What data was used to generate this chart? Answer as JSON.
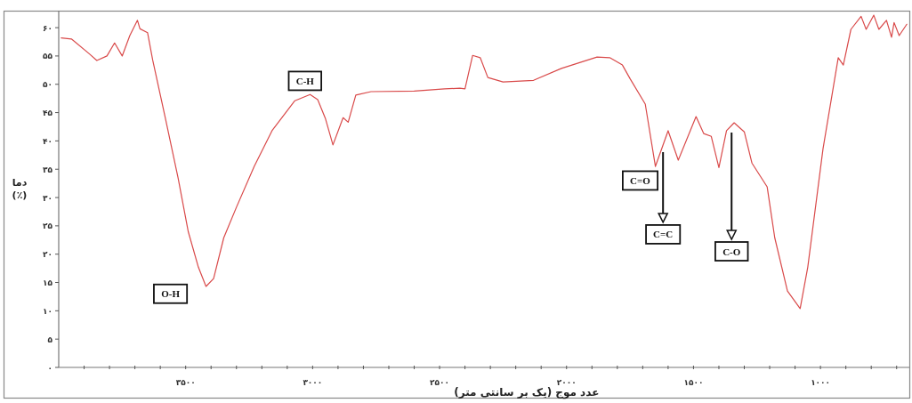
{
  "chart_data": {
    "type": "line",
    "xlabel": "عدد موج (یک بر سانتی متر)",
    "ylabel": "دما\n(٪)",
    "xlim": [
      4000,
      650
    ],
    "ylim": [
      0,
      63
    ],
    "xticks": [
      {
        "value": 3900,
        "label": null
      },
      {
        "value": 3800,
        "label": null
      },
      {
        "value": 3700,
        "label": null
      },
      {
        "value": 3600,
        "label": null
      },
      {
        "value": 3500,
        "label": "۳۵۰۰"
      },
      {
        "value": 3400,
        "label": null
      },
      {
        "value": 3300,
        "label": null
      },
      {
        "value": 3200,
        "label": null
      },
      {
        "value": 3100,
        "label": null
      },
      {
        "value": 3000,
        "label": "۳۰۰۰"
      },
      {
        "value": 2900,
        "label": null
      },
      {
        "value": 2800,
        "label": null
      },
      {
        "value": 2700,
        "label": null
      },
      {
        "value": 2600,
        "label": null
      },
      {
        "value": 2500,
        "label": "۲۵۰۰"
      },
      {
        "value": 2400,
        "label": null
      },
      {
        "value": 2300,
        "label": null
      },
      {
        "value": 2200,
        "label": null
      },
      {
        "value": 2100,
        "label": null
      },
      {
        "value": 2000,
        "label": "۲۰۰۰"
      },
      {
        "value": 1900,
        "label": null
      },
      {
        "value": 1800,
        "label": null
      },
      {
        "value": 1700,
        "label": null
      },
      {
        "value": 1600,
        "label": null
      },
      {
        "value": 1500,
        "label": "۱۵۰۰"
      },
      {
        "value": 1400,
        "label": null
      },
      {
        "value": 1300,
        "label": null
      },
      {
        "value": 1200,
        "label": null
      },
      {
        "value": 1100,
        "label": null
      },
      {
        "value": 1000,
        "label": "۱۰۰۰"
      },
      {
        "value": 900,
        "label": null
      },
      {
        "value": 800,
        "label": null
      },
      {
        "value": 700,
        "label": null
      }
    ],
    "yticks": [
      {
        "value": 0,
        "label": "۰"
      },
      {
        "value": 5,
        "label": "۵"
      },
      {
        "value": 10,
        "label": "۱۰"
      },
      {
        "value": 15,
        "label": "۱۵"
      },
      {
        "value": 20,
        "label": "۲۰"
      },
      {
        "value": 25,
        "label": "۲۵"
      },
      {
        "value": 30,
        "label": "۳۰"
      },
      {
        "value": 35,
        "label": "۳۵"
      },
      {
        "value": 40,
        "label": "۴۰"
      },
      {
        "value": 45,
        "label": "۴۵"
      },
      {
        "value": 50,
        "label": "۵۰"
      },
      {
        "value": 55,
        "label": "۵۵"
      },
      {
        "value": 60,
        "label": "۶۰"
      }
    ],
    "grid": false,
    "line_style": "solid",
    "series": [
      {
        "color": "#d94a4a",
        "x": [
          3990,
          3950,
          3880,
          3850,
          3810,
          3780,
          3750,
          3720,
          3690,
          3680,
          3650,
          3630,
          3580,
          3530,
          3490,
          3450,
          3420,
          3390,
          3350,
          3300,
          3230,
          3160,
          3070,
          3010,
          2980,
          2950,
          2920,
          2880,
          2860,
          2830,
          2770,
          2600,
          2480,
          2420,
          2400,
          2370,
          2340,
          2310,
          2250,
          2130,
          2020,
          1880,
          1830,
          1780,
          1750,
          1690,
          1650,
          1600,
          1560,
          1490,
          1460,
          1430,
          1400,
          1370,
          1340,
          1300,
          1270,
          1210,
          1180,
          1130,
          1080,
          1050,
          990,
          930,
          910,
          880,
          840,
          820,
          790,
          770,
          740,
          720,
          710,
          690,
          660
        ],
        "values": [
          58.2,
          58.0,
          55.4,
          54.2,
          55.0,
          57.3,
          55.0,
          58.6,
          61.3,
          59.8,
          59.1,
          54.3,
          44.0,
          33.5,
          24.0,
          17.7,
          14.3,
          15.7,
          22.9,
          28.3,
          35.5,
          41.8,
          47.1,
          48.2,
          47.3,
          44.0,
          39.3,
          44.1,
          43.3,
          48.1,
          48.7,
          48.8,
          49.2,
          49.3,
          49.2,
          55.1,
          54.7,
          51.2,
          50.4,
          50.7,
          52.8,
          54.8,
          54.7,
          53.4,
          51.0,
          46.5,
          35.5,
          41.8,
          36.6,
          44.3,
          41.3,
          40.8,
          35.3,
          41.8,
          43.2,
          41.6,
          36.1,
          31.9,
          22.9,
          13.5,
          10.4,
          17.7,
          38.6,
          54.7,
          53.4,
          59.7,
          62.0,
          59.7,
          62.2,
          59.7,
          61.3,
          58.3,
          60.9,
          58.6,
          60.6
        ]
      }
    ],
    "annotations": [
      {
        "text": "O-H",
        "x": 3560,
        "y": 13
      },
      {
        "text": "C-H",
        "x": 3030,
        "y": 50.6
      },
      {
        "text": "C=O",
        "x": 1710,
        "y": 33
      },
      {
        "text": "C=C",
        "x": 1620,
        "y": 23.5
      },
      {
        "text": "C-O",
        "x": 1350,
        "y": 20.5
      }
    ]
  }
}
